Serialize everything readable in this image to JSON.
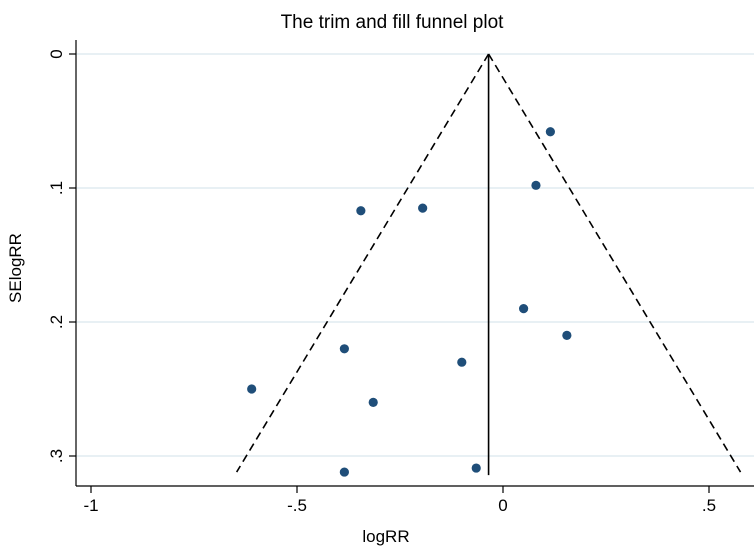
{
  "chart_data": {
    "type": "scatter",
    "title": "The trim and fill funnel plot",
    "xlabel": "logRR",
    "ylabel": "SElogRR",
    "xlim": [
      -1.0,
      0.6
    ],
    "ylim": [
      0,
      0.32
    ],
    "y_reversed": true,
    "x_ticks": [
      -1,
      -0.5,
      0,
      0.5
    ],
    "x_tick_labels": [
      "-1",
      "-.5",
      "0",
      ".5"
    ],
    "y_ticks": [
      0,
      0.1,
      0.2,
      0.3
    ],
    "y_tick_labels": [
      "0",
      ".1",
      ".2",
      ".3"
    ],
    "grid": "horizontal",
    "pooled_estimate": -0.035,
    "funnel_bottom_se": 0.312,
    "points": [
      {
        "x": 0.115,
        "y": 0.058
      },
      {
        "x": 0.08,
        "y": 0.098
      },
      {
        "x": -0.195,
        "y": 0.115
      },
      {
        "x": -0.345,
        "y": 0.117
      },
      {
        "x": 0.05,
        "y": 0.19
      },
      {
        "x": 0.155,
        "y": 0.21
      },
      {
        "x": -0.385,
        "y": 0.22
      },
      {
        "x": -0.1,
        "y": 0.23
      },
      {
        "x": -0.61,
        "y": 0.25
      },
      {
        "x": -0.315,
        "y": 0.26
      },
      {
        "x": -0.065,
        "y": 0.309
      },
      {
        "x": -0.385,
        "y": 0.312
      }
    ],
    "colors": {
      "marker": "#1f4e79",
      "grid": "#d9e6ee",
      "line": "#000000"
    }
  }
}
